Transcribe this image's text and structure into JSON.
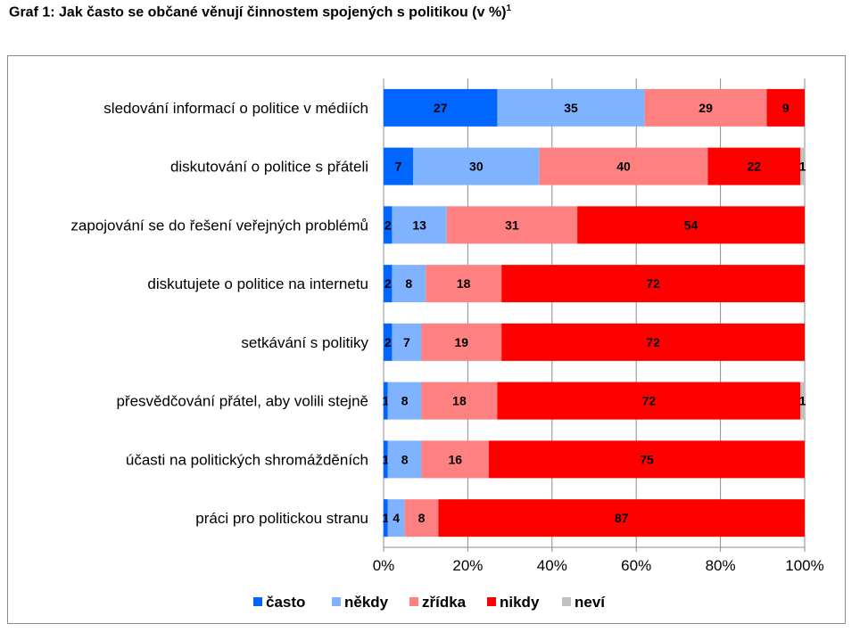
{
  "title": "Graf 1: Jak často se občané věnují činnostem spojených s politikou (v %)",
  "title_footnote": "1",
  "chart_data": {
    "type": "bar",
    "orientation": "horizontal",
    "stacked": "percent",
    "title": "Graf 1: Jak často se občané věnují činnostem spojených s politikou (v %)",
    "categories": [
      "sledování informací o politice v médiích",
      "diskutování o politice s přáteli",
      "zapojování se do řešení veřejných problémů",
      "diskutujete o politice na internetu",
      "setkávání s politiky",
      "přesvědčování přátel, aby volili stejně",
      "účasti na politických shromážděních",
      "práci pro politickou stranu"
    ],
    "series": [
      {
        "name": "často",
        "color": "#0066ff",
        "values": [
          27,
          7,
          2,
          2,
          2,
          1,
          1,
          1
        ]
      },
      {
        "name": "někdy",
        "color": "#80b3ff",
        "values": [
          35,
          30,
          13,
          8,
          7,
          8,
          8,
          4
        ]
      },
      {
        "name": "zřídka",
        "color": "#ff8080",
        "values": [
          29,
          40,
          31,
          18,
          19,
          18,
          16,
          8
        ]
      },
      {
        "name": "nikdy",
        "color": "#ff0000",
        "values": [
          9,
          22,
          54,
          72,
          72,
          72,
          75,
          87
        ]
      },
      {
        "name": "neví",
        "color": "#c0c0c0",
        "values": [
          0,
          1,
          0,
          0,
          0,
          1,
          0,
          0
        ]
      }
    ],
    "xlim": [
      0,
      100
    ],
    "x_ticks": [
      "0%",
      "20%",
      "40%",
      "60%",
      "80%",
      "100%"
    ],
    "grid": true,
    "legend": "bottom"
  }
}
